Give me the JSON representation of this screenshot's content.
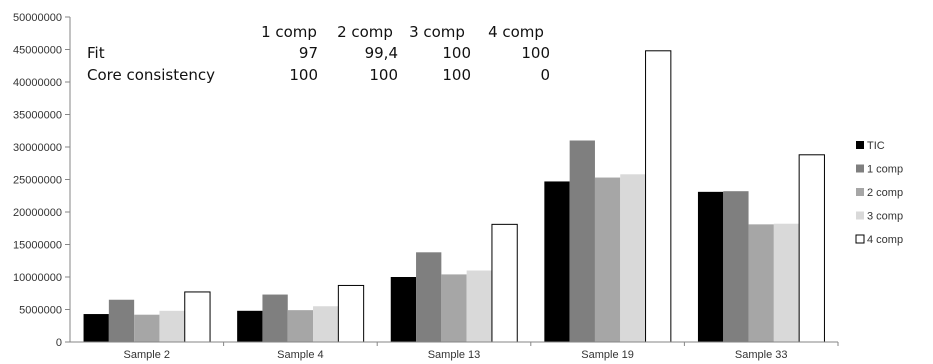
{
  "chart_data": {
    "type": "bar",
    "categories": [
      "Sample 2",
      "Sample 4",
      "Sample 13",
      "Sample 19",
      "Sample 33"
    ],
    "series": [
      {
        "name": "TIC",
        "color": "#000000",
        "values": [
          4300000,
          4800000,
          10000000,
          24700000,
          23100000
        ]
      },
      {
        "name": "1 comp",
        "color": "#7f7f7f",
        "values": [
          6500000,
          7300000,
          13800000,
          31000000,
          23200000
        ]
      },
      {
        "name": "2 comp",
        "color": "#a6a6a6",
        "values": [
          4200000,
          4900000,
          10400000,
          25300000,
          18100000
        ]
      },
      {
        "name": "3 comp",
        "color": "#d9d9d9",
        "values": [
          4800000,
          5500000,
          11000000,
          25800000,
          18200000
        ]
      },
      {
        "name": "4 comp",
        "color": "#ffffff",
        "values": [
          7700000,
          8700000,
          18100000,
          44800000,
          28800000
        ]
      }
    ],
    "yticks": [
      "0",
      "5000000",
      "10000000",
      "15000000",
      "20000000",
      "25000000",
      "30000000",
      "35000000",
      "40000000",
      "45000000",
      "50000000"
    ],
    "ylim": [
      0,
      50000000
    ],
    "grid": false,
    "legend": "right",
    "table": {
      "columns": [
        "1 comp",
        "2 comp",
        "3 comp",
        "4 comp"
      ],
      "rows": [
        {
          "label": "Fit",
          "values": [
            "97",
            "99,4",
            "100",
            "100"
          ]
        },
        {
          "label": "Core consistency",
          "values": [
            "100",
            "100",
            "100",
            "0"
          ]
        }
      ]
    }
  }
}
